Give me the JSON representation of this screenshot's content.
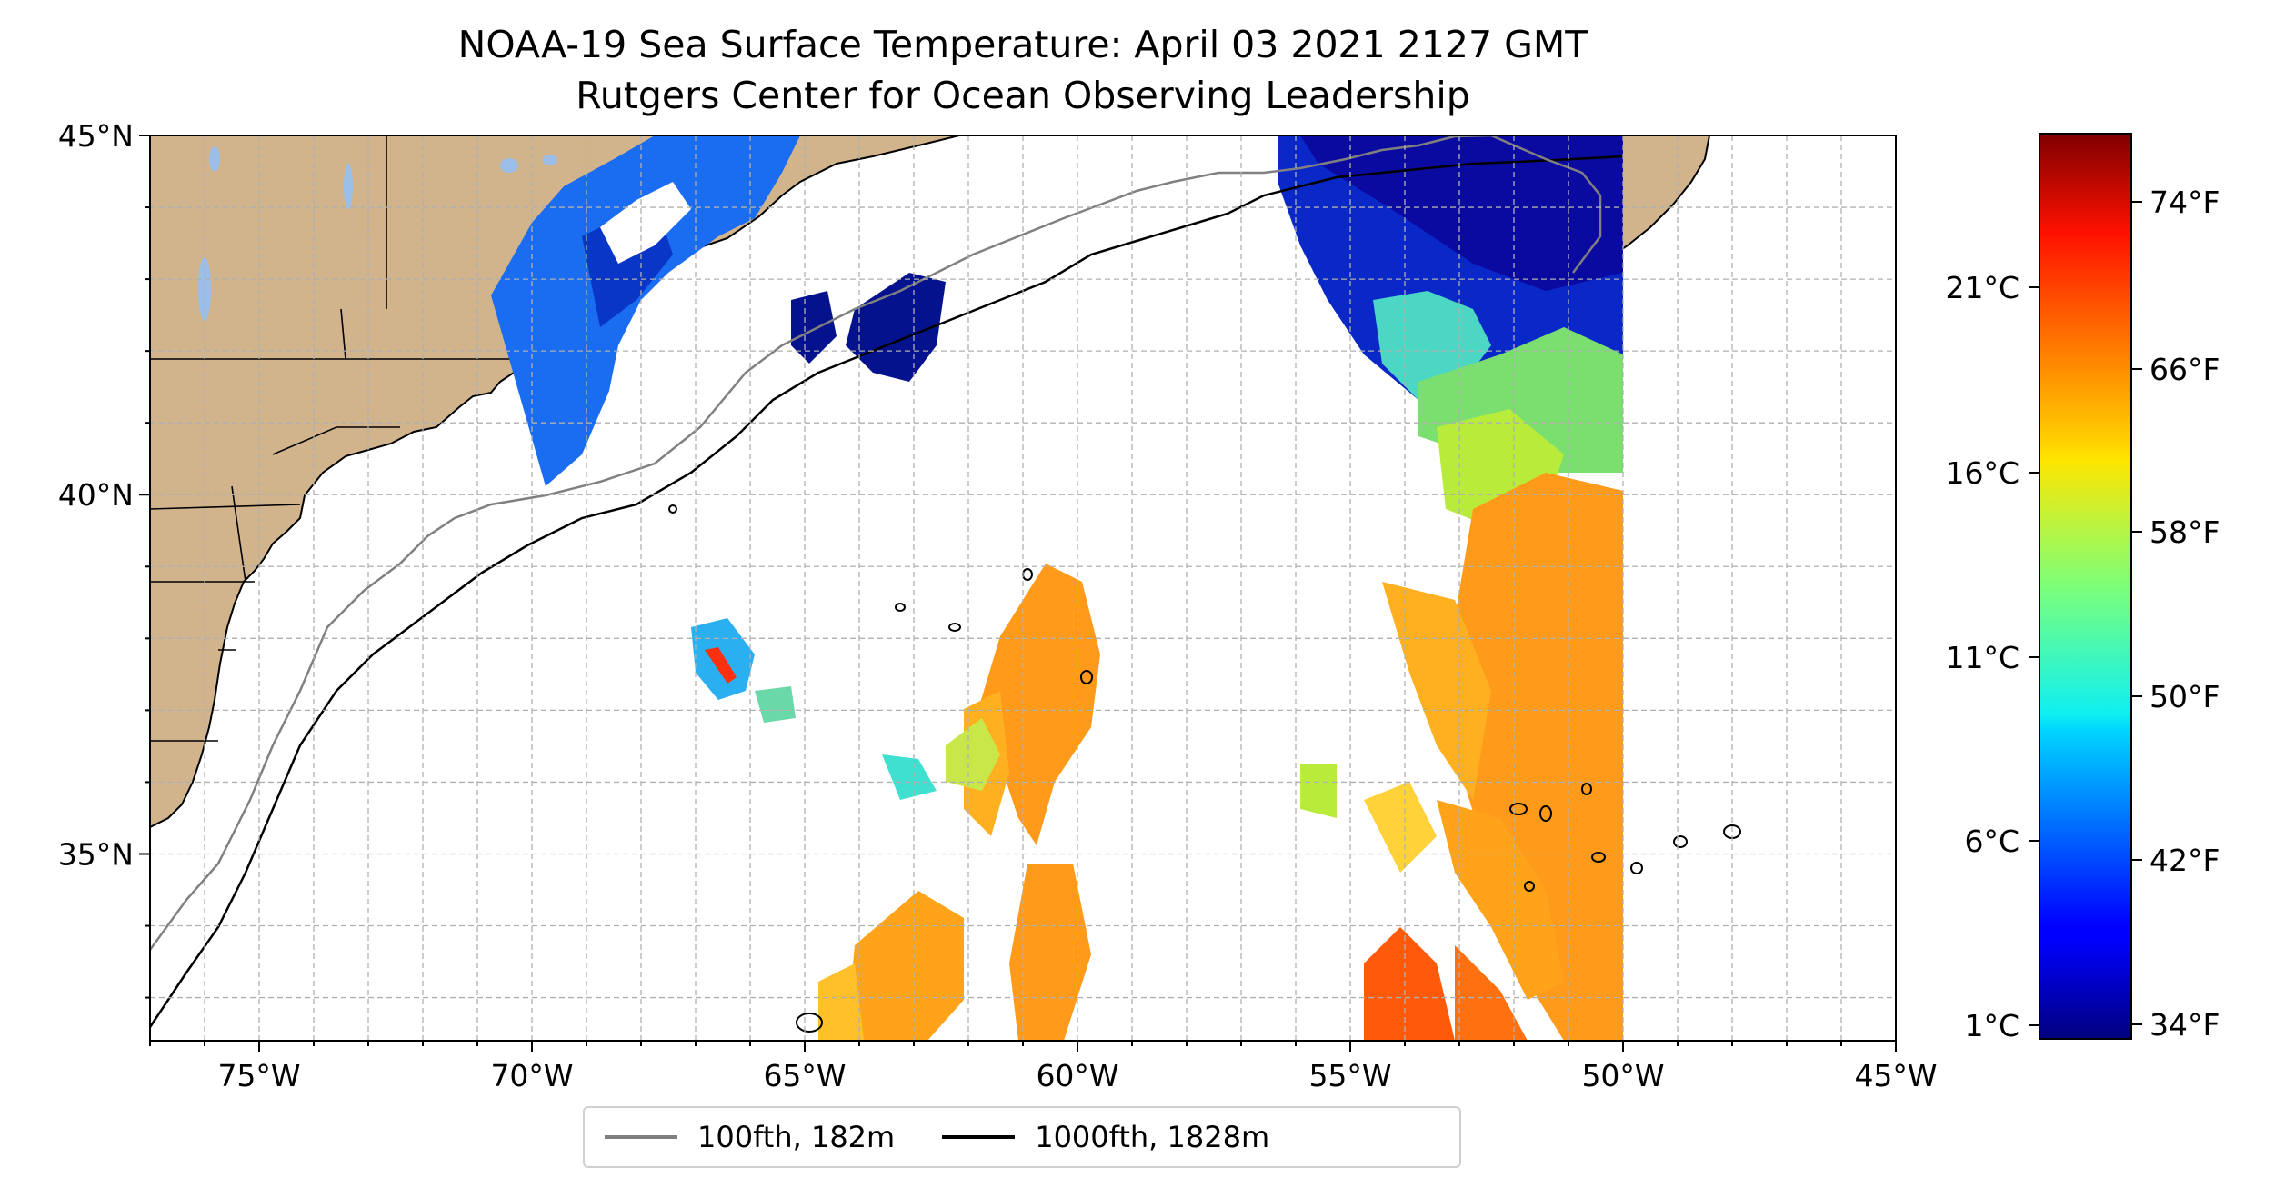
{
  "title": {
    "line1": "NOAA-19 Sea Surface Temperature: April 03 2021 2127 GMT",
    "line2": "Rutgers Center for Ocean Observing Leadership"
  },
  "map": {
    "lon_range": [
      -77,
      -45
    ],
    "lat_range": [
      32.4,
      45
    ],
    "grid": "dashed, every 1 degree",
    "land_color": "#d2b48c",
    "lake_color": "#9bbfe8",
    "x_ticks": [
      "75°W",
      "70°W",
      "65°W",
      "60°W",
      "55°W",
      "50°W",
      "45°W"
    ],
    "y_ticks": [
      "45°N",
      "40°N",
      "35°N"
    ]
  },
  "colorbar": {
    "colormap": "jet",
    "celsius_ticks": [
      "21°C",
      "16°C",
      "11°C",
      "6°C",
      "1°C"
    ],
    "fahrenheit_ticks": [
      "74°F",
      "66°F",
      "58°F",
      "50°F",
      "42°F",
      "34°F"
    ]
  },
  "legend": {
    "items": [
      {
        "label": "100fth, 182m",
        "color": "#808080"
      },
      {
        "label": "1000fth, 1828m",
        "color": "#000000"
      }
    ]
  }
}
